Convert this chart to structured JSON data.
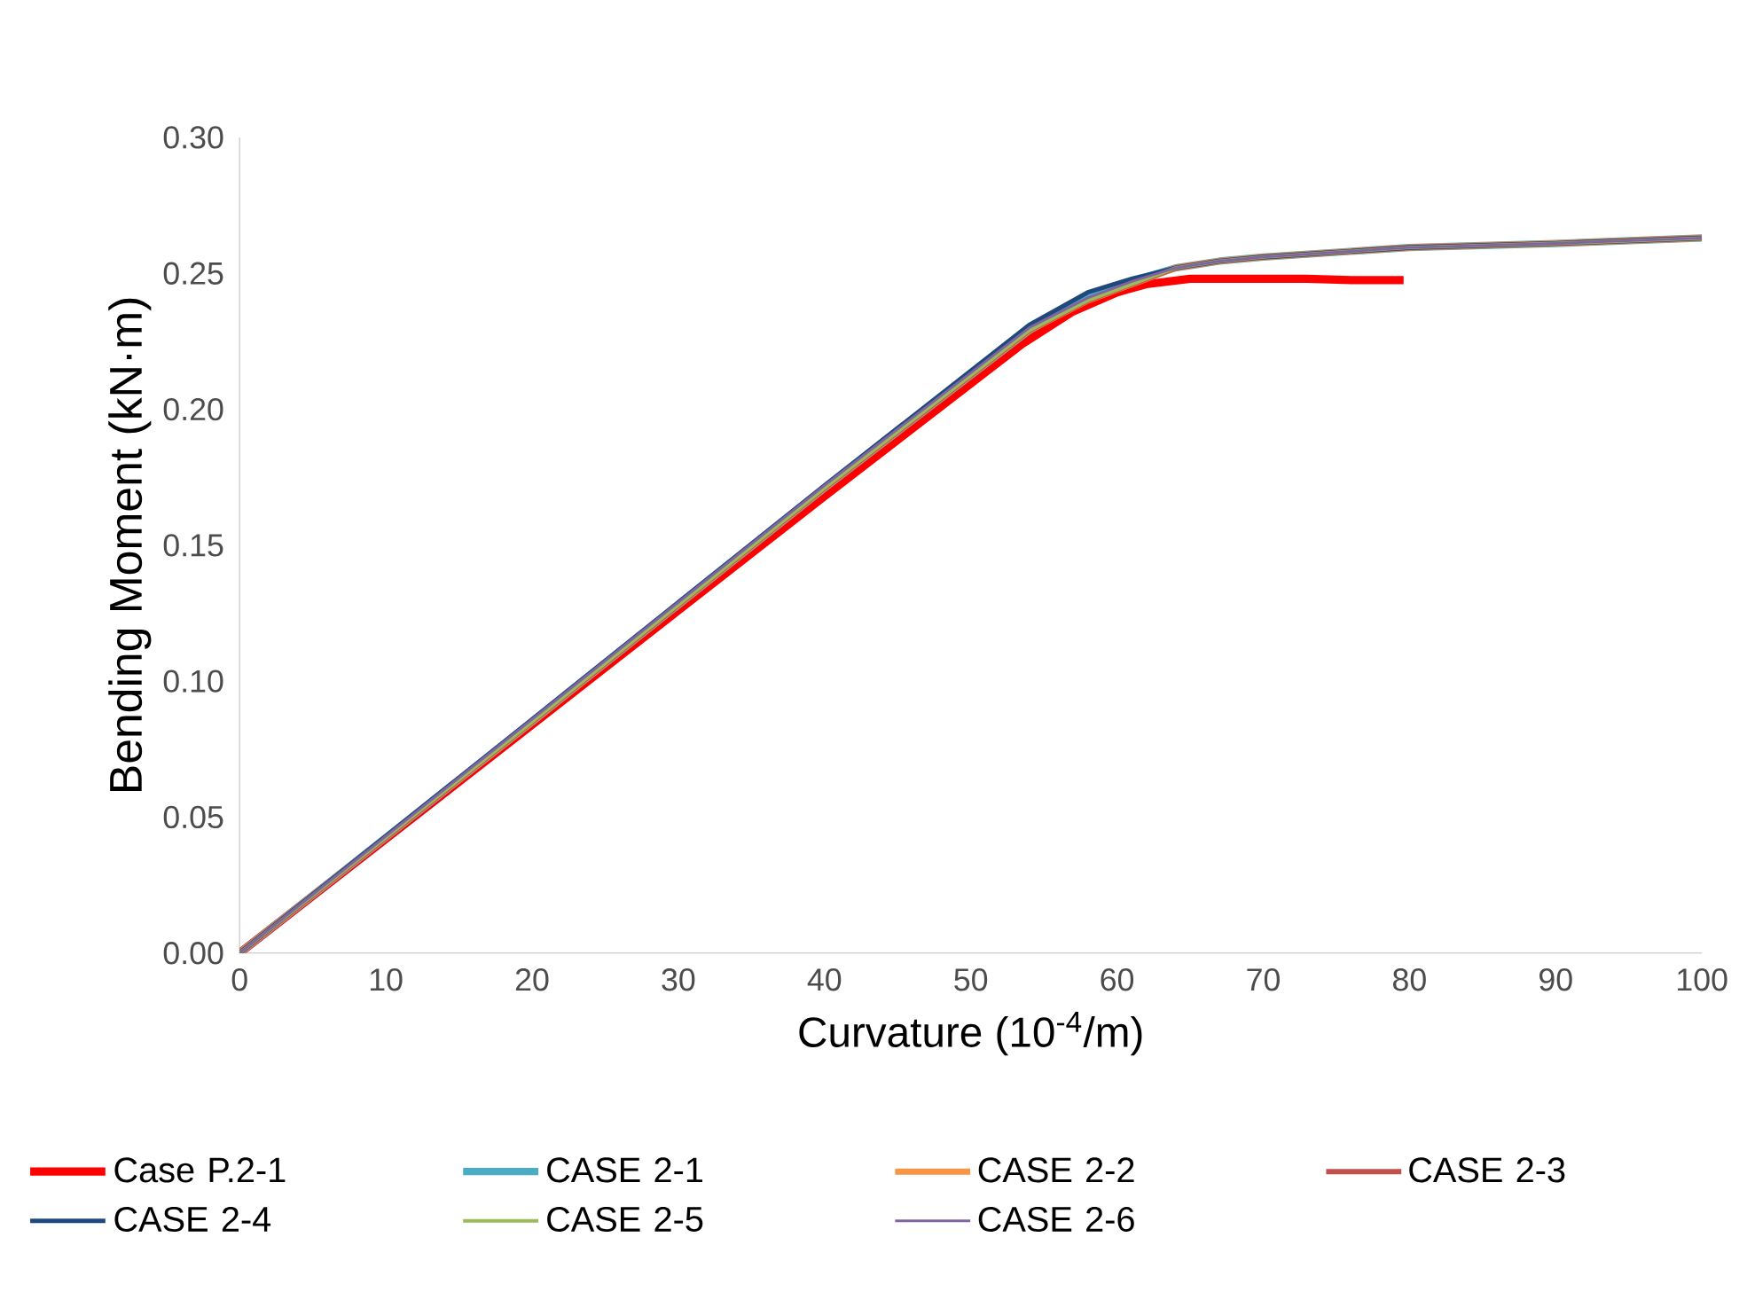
{
  "chart_data": {
    "type": "line",
    "xlabel": "Curvature (10$^{-4}$/m)",
    "ylabel": "Bending Moment (kN·m)",
    "xlim": [
      0,
      100
    ],
    "xticks": [
      0,
      10,
      20,
      30,
      40,
      50,
      60,
      70,
      80,
      90,
      100
    ],
    "ylim": [
      0,
      0.3
    ],
    "yticks": [
      {
        "value": 0,
        "label": "0.00"
      },
      {
        "value": 0.05,
        "label": "0.05"
      },
      {
        "value": 0.1,
        "label": "0.10"
      },
      {
        "value": 0.15,
        "label": "0.15"
      },
      {
        "value": 0.2,
        "label": "0.20"
      },
      {
        "value": 0.25,
        "label": "0.25"
      },
      {
        "value": 0.3,
        "label": "0.30"
      }
    ],
    "grid": false,
    "legend": "bottom",
    "marker": "none",
    "line_style": "solid",
    "series": [
      {
        "name": "Case P.2-1",
        "color": "#ff0000",
        "x": [
          0,
          20,
          40,
          53.5,
          57,
          60,
          62,
          65,
          70,
          73,
          76,
          79.6
        ],
        "values": [
          0,
          0.084,
          0.168,
          0.224,
          0.236,
          0.243,
          0.246,
          0.248,
          0.248,
          0.248,
          0.2475,
          0.2475
        ]
      },
      {
        "name": "CASE 2-1",
        "color": "#4bacc6",
        "x": [
          0,
          20,
          40,
          54,
          58,
          61,
          64,
          67,
          70,
          80,
          90,
          100
        ],
        "values": [
          0,
          0.085,
          0.171,
          0.229,
          0.241,
          0.247,
          0.252,
          0.2545,
          0.256,
          0.2595,
          0.261,
          0.263
        ]
      },
      {
        "name": "CASE 2-2",
        "color": "#f79646",
        "x": [
          0,
          20,
          40,
          54,
          58,
          61,
          64,
          67,
          70,
          80,
          90,
          100
        ],
        "values": [
          0,
          0.085,
          0.171,
          0.229,
          0.24,
          0.246,
          0.252,
          0.2545,
          0.256,
          0.2595,
          0.261,
          0.263
        ]
      },
      {
        "name": "CASE 2-3",
        "color": "#c0504d",
        "x": [
          0,
          20,
          40,
          54,
          58,
          61,
          64,
          67,
          70,
          80,
          90,
          100
        ],
        "values": [
          0,
          0.085,
          0.171,
          0.229,
          0.24,
          0.246,
          0.252,
          0.2545,
          0.256,
          0.2595,
          0.261,
          0.263
        ]
      },
      {
        "name": "CASE 2-4",
        "color": "#1f497d",
        "x": [
          0,
          20,
          40,
          54,
          58,
          61,
          64,
          67,
          70,
          80,
          90,
          100
        ],
        "values": [
          0,
          0.086,
          0.172,
          0.231,
          0.243,
          0.248,
          0.252,
          0.2545,
          0.256,
          0.2595,
          0.261,
          0.263
        ]
      },
      {
        "name": "CASE 2-5",
        "color": "#9bbb59",
        "x": [
          0,
          20,
          40,
          54,
          58,
          61,
          64,
          67,
          70,
          80,
          90,
          100
        ],
        "values": [
          0,
          0.085,
          0.171,
          0.229,
          0.24,
          0.246,
          0.252,
          0.2545,
          0.256,
          0.2595,
          0.261,
          0.263
        ]
      },
      {
        "name": "CASE 2-6",
        "color": "#8064a2",
        "x": [
          0,
          20,
          40,
          54,
          58,
          61,
          64,
          67,
          70,
          80,
          90,
          100
        ],
        "values": [
          0,
          0.086,
          0.172,
          0.23,
          0.241,
          0.247,
          0.252,
          0.2545,
          0.256,
          0.2595,
          0.261,
          0.263
        ]
      }
    ]
  }
}
